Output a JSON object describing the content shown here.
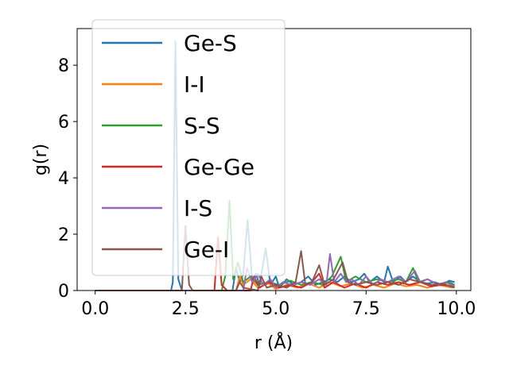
{
  "chart_data": {
    "type": "line",
    "title": "",
    "xlabel": "r (Å)",
    "ylabel": "g(r)",
    "xlim": [
      -0.5,
      10.4
    ],
    "ylim": [
      0,
      9.3
    ],
    "xticks": [
      {
        "value": 0.0,
        "label": "0.0"
      },
      {
        "value": 2.5,
        "label": "2.5"
      },
      {
        "value": 5.0,
        "label": "5.0"
      },
      {
        "value": 7.5,
        "label": "7.5"
      },
      {
        "value": 10.0,
        "label": "10.0"
      }
    ],
    "yticks": [
      {
        "value": 0,
        "label": "0"
      },
      {
        "value": 2,
        "label": "2"
      },
      {
        "value": 4,
        "label": "4"
      },
      {
        "value": 6,
        "label": "6"
      },
      {
        "value": 8,
        "label": "8"
      }
    ],
    "grid": false,
    "legend_position": "top-left",
    "series": [
      {
        "name": "Ge-S",
        "color": "#1f77b4",
        "points": [
          [
            0,
            0
          ],
          [
            2.1,
            0
          ],
          [
            2.15,
            0.3
          ],
          [
            2.22,
            8.85
          ],
          [
            2.3,
            0.4
          ],
          [
            2.4,
            0
          ],
          [
            3.8,
            0
          ],
          [
            3.9,
            0.8
          ],
          [
            4.0,
            0.3
          ],
          [
            4.1,
            0.6
          ],
          [
            4.22,
            2.5
          ],
          [
            4.35,
            0.3
          ],
          [
            4.45,
            0.6
          ],
          [
            4.55,
            0.2
          ],
          [
            4.72,
            1.5
          ],
          [
            4.85,
            0.2
          ],
          [
            5.0,
            0.5
          ],
          [
            5.1,
            0.1
          ],
          [
            5.3,
            0.4
          ],
          [
            5.5,
            0.2
          ],
          [
            5.7,
            0.3
          ],
          [
            5.9,
            0.5
          ],
          [
            6.1,
            0.2
          ],
          [
            6.3,
            0.3
          ],
          [
            6.5,
            0.4
          ],
          [
            6.7,
            0.3
          ],
          [
            6.9,
            0.5
          ],
          [
            7.1,
            0.3
          ],
          [
            7.3,
            0.4
          ],
          [
            7.45,
            0.6
          ],
          [
            7.6,
            0.3
          ],
          [
            7.8,
            0.5
          ],
          [
            8.0,
            0.3
          ],
          [
            8.1,
            0.85
          ],
          [
            8.25,
            0.3
          ],
          [
            8.45,
            0.5
          ],
          [
            8.6,
            0.3
          ],
          [
            8.8,
            0.5
          ],
          [
            9.0,
            0.3
          ],
          [
            9.2,
            0.25
          ],
          [
            9.4,
            0.3
          ],
          [
            9.6,
            0.2
          ],
          [
            9.8,
            0.35
          ],
          [
            9.95,
            0.3
          ]
        ]
      },
      {
        "name": "I-I",
        "color": "#ff7f0e",
        "points": [
          [
            0,
            0
          ],
          [
            3.9,
            0
          ],
          [
            4.0,
            0.5
          ],
          [
            4.1,
            0.2
          ],
          [
            4.3,
            0.4
          ],
          [
            4.5,
            0.1
          ],
          [
            4.8,
            0.25
          ],
          [
            5.0,
            0.05
          ],
          [
            5.3,
            0.2
          ],
          [
            5.6,
            0.1
          ],
          [
            5.9,
            0.25
          ],
          [
            6.2,
            0.1
          ],
          [
            6.5,
            0.3
          ],
          [
            6.8,
            0.15
          ],
          [
            7.1,
            0.25
          ],
          [
            7.4,
            0.1
          ],
          [
            7.7,
            0.2
          ],
          [
            8.0,
            0.1
          ],
          [
            8.3,
            0.25
          ],
          [
            8.6,
            0.15
          ],
          [
            8.9,
            0.2
          ],
          [
            9.2,
            0.1
          ],
          [
            9.5,
            0.2
          ],
          [
            9.9,
            0.1
          ]
        ]
      },
      {
        "name": "S-S",
        "color": "#2ca02c",
        "points": [
          [
            0,
            0
          ],
          [
            3.5,
            0
          ],
          [
            3.6,
            0.5
          ],
          [
            3.72,
            3.2
          ],
          [
            3.82,
            0.4
          ],
          [
            3.95,
            1.0
          ],
          [
            4.1,
            0.3
          ],
          [
            4.3,
            0.5
          ],
          [
            4.5,
            0.2
          ],
          [
            4.8,
            0.3
          ],
          [
            5.1,
            0.2
          ],
          [
            5.4,
            0.35
          ],
          [
            5.7,
            0.2
          ],
          [
            6.0,
            0.3
          ],
          [
            6.3,
            0.2
          ],
          [
            6.55,
            0.5
          ],
          [
            6.8,
            1.2
          ],
          [
            6.95,
            0.3
          ],
          [
            7.2,
            0.5
          ],
          [
            7.5,
            0.3
          ],
          [
            7.8,
            0.4
          ],
          [
            8.1,
            0.3
          ],
          [
            8.4,
            0.4
          ],
          [
            8.6,
            0.3
          ],
          [
            8.8,
            0.8
          ],
          [
            8.95,
            0.3
          ],
          [
            9.2,
            0.4
          ],
          [
            9.5,
            0.2
          ],
          [
            9.8,
            0.3
          ],
          [
            9.95,
            0.2
          ]
        ]
      },
      {
        "name": "Ge-Ge",
        "color": "#d62728",
        "points": [
          [
            0,
            0
          ],
          [
            3.3,
            0
          ],
          [
            3.4,
            1.9
          ],
          [
            3.5,
            0.2
          ],
          [
            3.65,
            0
          ],
          [
            4.3,
            0
          ],
          [
            4.4,
            0.5
          ],
          [
            4.55,
            0.1
          ],
          [
            4.8,
            0.3
          ],
          [
            5.1,
            0.1
          ],
          [
            5.4,
            0.2
          ],
          [
            5.7,
            0.1
          ],
          [
            6.0,
            0.3
          ],
          [
            6.2,
            0.6
          ],
          [
            6.35,
            0.1
          ],
          [
            6.6,
            0.3
          ],
          [
            6.9,
            0.1
          ],
          [
            7.2,
            0.25
          ],
          [
            7.5,
            0.1
          ],
          [
            7.8,
            0.3
          ],
          [
            8.1,
            0.2
          ],
          [
            8.4,
            0.3
          ],
          [
            8.7,
            0.2
          ],
          [
            9.0,
            0.3
          ],
          [
            9.3,
            0.15
          ],
          [
            9.6,
            0.2
          ],
          [
            9.95,
            0.15
          ]
        ]
      },
      {
        "name": "I-S",
        "color": "#9467bd",
        "points": [
          [
            0,
            0
          ],
          [
            4.1,
            0
          ],
          [
            4.2,
            0.8
          ],
          [
            4.35,
            0.3
          ],
          [
            4.5,
            0.6
          ],
          [
            4.65,
            0.2
          ],
          [
            4.85,
            0.4
          ],
          [
            5.0,
            0.1
          ],
          [
            5.2,
            0.3
          ],
          [
            5.45,
            0.2
          ],
          [
            5.7,
            0.3
          ],
          [
            5.95,
            0.2
          ],
          [
            6.2,
            0.4
          ],
          [
            6.4,
            0.2
          ],
          [
            6.5,
            1.3
          ],
          [
            6.62,
            0.3
          ],
          [
            6.8,
            0.6
          ],
          [
            6.95,
            0.3
          ],
          [
            7.1,
            0.4
          ],
          [
            7.3,
            0.2
          ],
          [
            7.5,
            0.5
          ],
          [
            7.7,
            0.2
          ],
          [
            7.9,
            0.4
          ],
          [
            8.1,
            0.3
          ],
          [
            8.4,
            0.5
          ],
          [
            8.6,
            0.3
          ],
          [
            8.85,
            0.7
          ],
          [
            9.0,
            0.3
          ],
          [
            9.2,
            0.4
          ],
          [
            9.5,
            0.2
          ],
          [
            9.7,
            0.3
          ],
          [
            9.95,
            0.15
          ]
        ]
      },
      {
        "name": "Ge-I",
        "color": "#8c564b",
        "points": [
          [
            0,
            0
          ],
          [
            2.4,
            0
          ],
          [
            2.5,
            2.3
          ],
          [
            2.6,
            0.2
          ],
          [
            2.7,
            0
          ],
          [
            3.9,
            0
          ],
          [
            4.0,
            0.3
          ],
          [
            4.1,
            0.1
          ],
          [
            4.5,
            0
          ],
          [
            4.6,
            0.5
          ],
          [
            4.75,
            0.1
          ],
          [
            5.0,
            0.2
          ],
          [
            5.3,
            0.1
          ],
          [
            5.55,
            0.3
          ],
          [
            5.7,
            1.4
          ],
          [
            5.82,
            0.2
          ],
          [
            6.0,
            0.3
          ],
          [
            6.2,
            0.9
          ],
          [
            6.35,
            0.2
          ],
          [
            6.6,
            0.4
          ],
          [
            6.85,
            1.0
          ],
          [
            7.0,
            0.3
          ],
          [
            7.2,
            0.2
          ],
          [
            7.5,
            0.3
          ],
          [
            7.8,
            0.2
          ],
          [
            8.1,
            0.3
          ],
          [
            8.4,
            0.2
          ],
          [
            8.7,
            0.4
          ],
          [
            9.0,
            0.3
          ],
          [
            9.3,
            0.2
          ],
          [
            9.6,
            0.25
          ],
          [
            9.95,
            0.1
          ]
        ]
      }
    ]
  }
}
